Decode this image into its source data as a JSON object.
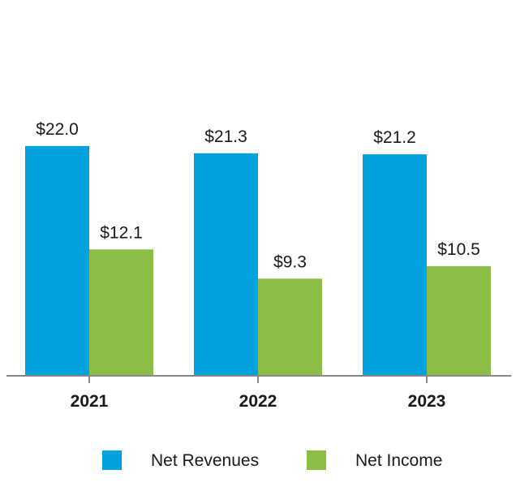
{
  "chart_data": {
    "type": "bar",
    "categories": [
      "2021",
      "2022",
      "2023"
    ],
    "series": [
      {
        "name": "Net Revenues",
        "color": "#00a3e0",
        "values": [
          22.0,
          21.3,
          21.2
        ],
        "labels": [
          "$22.0",
          "$21.3",
          "$21.2"
        ]
      },
      {
        "name": "Net Income",
        "color": "#8cbd44",
        "values": [
          12.1,
          9.3,
          10.5
        ],
        "labels": [
          "$12.1",
          "$9.3",
          "$10.5"
        ]
      }
    ],
    "title": "",
    "xlabel": "",
    "ylabel": "",
    "ylim": [
      0,
      22
    ],
    "grid": false,
    "legend_position": "bottom",
    "axis_color": "#888888"
  }
}
